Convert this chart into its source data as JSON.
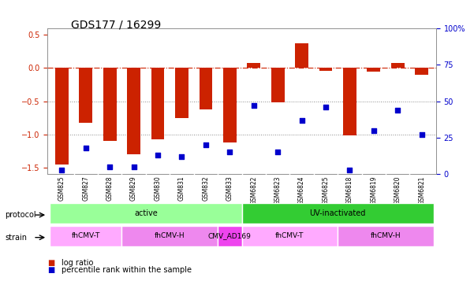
{
  "title": "GDS177 / 16299",
  "samples": [
    "GSM825",
    "GSM827",
    "GSM828",
    "GSM829",
    "GSM830",
    "GSM831",
    "GSM832",
    "GSM833",
    "GSM6822",
    "GSM6823",
    "GSM6824",
    "GSM6825",
    "GSM6818",
    "GSM6819",
    "GSM6820",
    "GSM6821"
  ],
  "log_ratio": [
    -1.45,
    -0.82,
    -1.1,
    -1.3,
    -1.08,
    -0.75,
    -0.63,
    -1.12,
    0.07,
    -0.52,
    0.37,
    -0.04,
    -1.02,
    -0.05,
    0.08,
    -0.1
  ],
  "pct_rank": [
    3,
    18,
    5,
    5,
    13,
    12,
    20,
    15,
    47,
    15,
    37,
    46,
    3,
    30,
    44,
    27
  ],
  "bar_color": "#cc2200",
  "dot_color": "#0000cc",
  "ylim_left": [
    -1.6,
    0.6
  ],
  "ylim_right": [
    0,
    100
  ],
  "yticks_left": [
    -1.5,
    -1.0,
    -0.5,
    0.0,
    0.5
  ],
  "yticks_right": [
    0,
    25,
    50,
    75,
    100
  ],
  "ytick_labels_right": [
    "0",
    "25",
    "50",
    "75",
    "100%"
  ],
  "hlines": [
    -1.0,
    -0.5
  ],
  "protocol_groups": [
    {
      "label": "active",
      "start": 0,
      "end": 8,
      "color": "#99ff99"
    },
    {
      "label": "UV-inactivated",
      "start": 8,
      "end": 16,
      "color": "#33cc33"
    }
  ],
  "strain_groups": [
    {
      "label": "fhCMV-T",
      "start": 0,
      "end": 3,
      "color": "#ffaaff"
    },
    {
      "label": "fhCMV-H",
      "start": 3,
      "end": 7,
      "color": "#ee88ee"
    },
    {
      "label": "CMV_AD169",
      "start": 7,
      "end": 8,
      "color": "#ee44ee"
    },
    {
      "label": "fhCMV-T",
      "start": 8,
      "end": 12,
      "color": "#ffaaff"
    },
    {
      "label": "fhCMV-H",
      "start": 12,
      "end": 16,
      "color": "#ee88ee"
    }
  ],
  "legend_items": [
    {
      "label": "log ratio",
      "color": "#cc2200"
    },
    {
      "label": "percentile rank within the sample",
      "color": "#0000cc"
    }
  ],
  "protocol_label": "protocol",
  "strain_label": "strain",
  "bg_color": "#ffffff",
  "grid_color": "#aaaaaa",
  "zero_line_color": "#cc2200",
  "dot_line_color": "#888888"
}
